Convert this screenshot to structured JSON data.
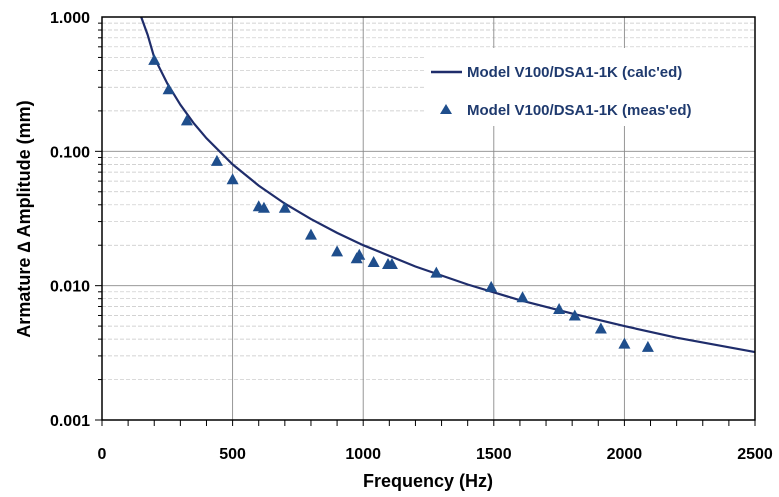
{
  "chart_data": {
    "type": "scatter",
    "xlabel": "Frequency (Hz)",
    "ylabel": "Armature ∆ Amplitude (mm)",
    "xlim": [
      0,
      2500
    ],
    "ylim": [
      0.001,
      1.0
    ],
    "yscale": "log",
    "grid": true,
    "legend_position": "top-right",
    "x_ticks": [
      "0",
      "500",
      "1000",
      "1500",
      "2000",
      "2500"
    ],
    "y_ticks": [
      "0.001",
      "0.010",
      "0.100",
      "1.000"
    ],
    "series": [
      {
        "name": "Model V100/DSA1-1K (calc'ed)",
        "kind": "line",
        "color": "#1f2d6b",
        "x": [
          150,
          175,
          200,
          250,
          300,
          350,
          400,
          500,
          600,
          700,
          800,
          900,
          1000,
          1200,
          1400,
          1600,
          1800,
          2000,
          2200,
          2500
        ],
        "y": [
          1.0,
          0.735,
          0.5,
          0.32,
          0.222,
          0.163,
          0.125,
          0.08,
          0.0556,
          0.0408,
          0.0313,
          0.0247,
          0.02,
          0.0139,
          0.0102,
          0.0078,
          0.0062,
          0.005,
          0.0041,
          0.0032
        ]
      },
      {
        "name": "Model V100/DSA1-1K (meas'ed)",
        "kind": "marker",
        "marker": "triangle",
        "color": "#1f4e8c",
        "x": [
          200,
          255,
          325,
          440,
          500,
          600,
          620,
          700,
          800,
          900,
          975,
          985,
          1040,
          1095,
          1110,
          1280,
          1490,
          1610,
          1750,
          1810,
          1910,
          2000,
          2090
        ],
        "y": [
          0.48,
          0.29,
          0.17,
          0.085,
          0.062,
          0.039,
          0.038,
          0.038,
          0.024,
          0.018,
          0.016,
          0.017,
          0.015,
          0.0145,
          0.0145,
          0.0125,
          0.0098,
          0.0082,
          0.0067,
          0.006,
          0.0048,
          0.0037,
          0.0035
        ]
      }
    ]
  }
}
